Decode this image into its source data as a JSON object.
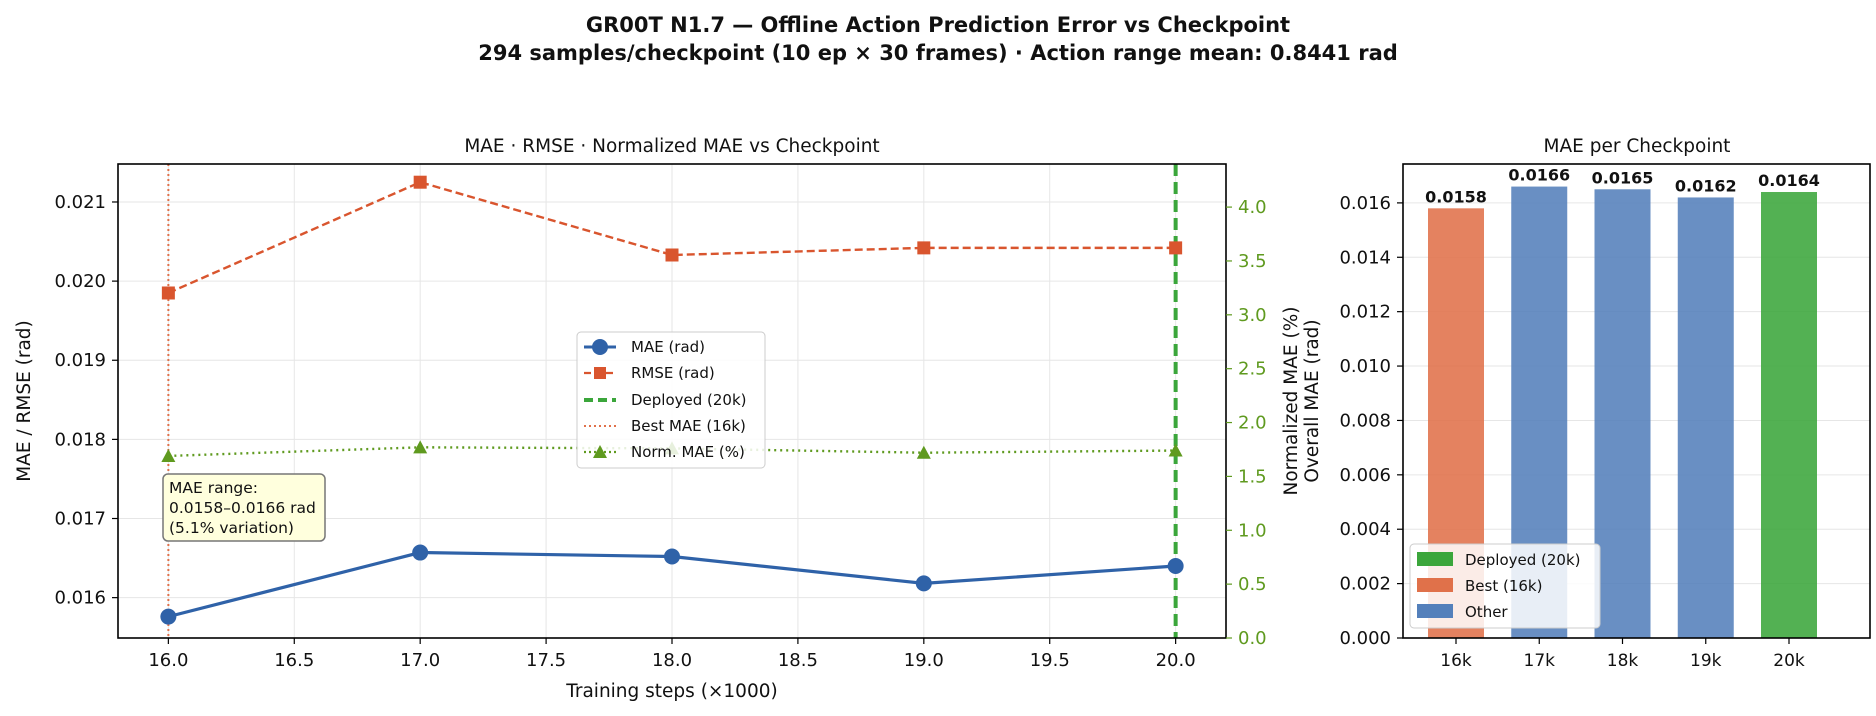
{
  "figure": {
    "title_line1": "GR00T N1.7 — Offline Action Prediction Error vs Checkpoint",
    "title_line2": "294 samples/checkpoint (10 ep × 30 frames) · Action range mean: 0.8441 rad"
  },
  "colors": {
    "mae": "#2f62a8",
    "rmse": "#d9552e",
    "norm": "#5f9a1f",
    "deployed": "#3ba63b",
    "best": "#e0714a",
    "other": "#5480bb",
    "grid": "#e6e6e6",
    "annotation_bg": "#ffffdd"
  },
  "chart_data": [
    {
      "type": "line",
      "title": "MAE · RMSE · Normalized MAE vs Checkpoint",
      "xlabel": "Training steps (×1000)",
      "ylabel": "MAE / RMSE (rad)",
      "y2label": "Normalized MAE (%)",
      "xlim": [
        15.8,
        20.2
      ],
      "ylim": [
        0.01549,
        0.02148
      ],
      "y2lim": [
        0.0,
        4.4
      ],
      "xticks": [
        16.0,
        16.5,
        17.0,
        17.5,
        18.0,
        18.5,
        19.0,
        19.5,
        20.0
      ],
      "xtick_labels": [
        "16.0",
        "16.5",
        "17.0",
        "17.5",
        "18.0",
        "18.5",
        "19.0",
        "19.5",
        "20.0"
      ],
      "yticks": [
        0.016,
        0.017,
        0.018,
        0.019,
        0.02,
        0.021
      ],
      "ytick_labels": [
        "0.016",
        "0.017",
        "0.018",
        "0.019",
        "0.020",
        "0.021"
      ],
      "y2ticks": [
        0.0,
        0.5,
        1.0,
        1.5,
        2.0,
        2.5,
        3.0,
        3.5,
        4.0
      ],
      "y2tick_labels": [
        "0.0",
        "0.5",
        "1.0",
        "1.5",
        "2.0",
        "2.5",
        "3.0",
        "3.5",
        "4.0"
      ],
      "grid": true,
      "legend_position": "center",
      "x": [
        16,
        17,
        18,
        19,
        20
      ],
      "series": [
        {
          "name": "MAE (rad)",
          "axis": "left",
          "values": [
            0.01576,
            0.01657,
            0.01652,
            0.01618,
            0.0164
          ]
        },
        {
          "name": "RMSE (rad)",
          "axis": "left",
          "values": [
            0.01985,
            0.02125,
            0.02033,
            0.02042,
            0.02042
          ]
        },
        {
          "name": "Norm. MAE (%)",
          "axis": "right",
          "values": [
            1.69,
            1.77,
            1.76,
            1.72,
            1.74
          ]
        }
      ],
      "reference_lines": [
        {
          "name": "Deployed (20k)",
          "x": 20.0
        },
        {
          "name": "Best MAE (16k)",
          "x": 16.0
        }
      ],
      "annotation": {
        "line1": "MAE range:",
        "line2": "0.0158–0.0166 rad",
        "line3": "(5.1% variation)"
      }
    },
    {
      "type": "bar",
      "title": "MAE per Checkpoint",
      "ylabel": "Overall MAE (rad)",
      "categories": [
        "16k",
        "17k",
        "18k",
        "19k",
        "20k"
      ],
      "values": [
        0.0158,
        0.0166,
        0.0165,
        0.0162,
        0.0164
      ],
      "value_labels": [
        "0.0158",
        "0.0166",
        "0.0165",
        "0.0162",
        "0.0164"
      ],
      "roles": [
        "best",
        "other",
        "other",
        "other",
        "deployed"
      ],
      "ylim": [
        0.0,
        0.01743
      ],
      "yticks": [
        0,
        0.002,
        0.004,
        0.006,
        0.008,
        0.01,
        0.012,
        0.014,
        0.016
      ],
      "ytick_labels": [
        "0.000",
        "0.002",
        "0.004",
        "0.006",
        "0.008",
        "0.010",
        "0.012",
        "0.014",
        "0.016"
      ],
      "grid": true,
      "legend_position": "lower-left",
      "legend": [
        {
          "name": "Deployed (20k)",
          "role": "deployed"
        },
        {
          "name": "Best (16k)",
          "role": "best"
        },
        {
          "name": "Other",
          "role": "other"
        }
      ]
    }
  ]
}
